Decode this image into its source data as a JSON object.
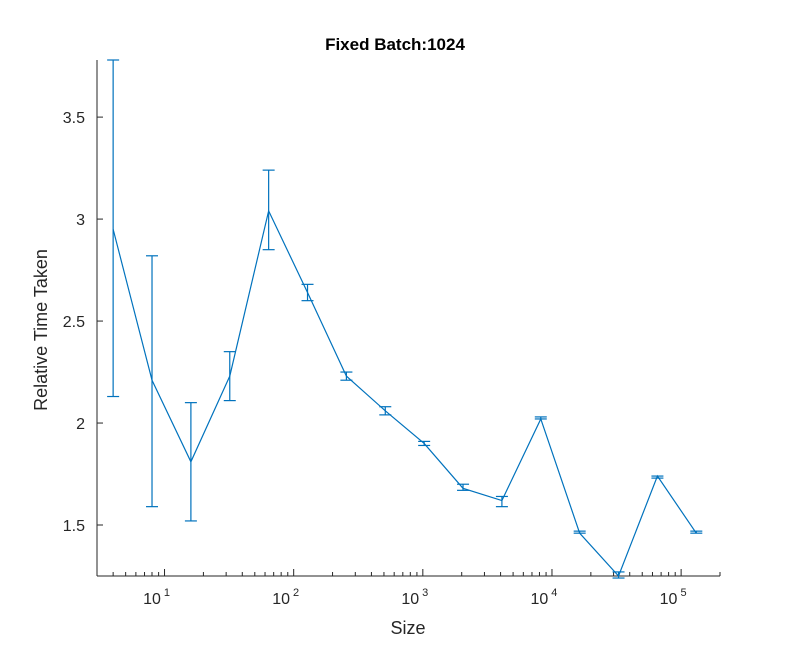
{
  "chart_data": {
    "type": "line",
    "title": "Fixed Batch:1024",
    "xlabel": "Size",
    "ylabel": "Relative Time Taken",
    "xscale": "log",
    "xlim": [
      3,
      200000
    ],
    "ylim": [
      1.25,
      3.78
    ],
    "grid": false,
    "x_ticks": [
      {
        "value": 10,
        "base": "10",
        "exp": "1"
      },
      {
        "value": 100,
        "base": "10",
        "exp": "2"
      },
      {
        "value": 1000,
        "base": "10",
        "exp": "3"
      },
      {
        "value": 10000,
        "base": "10",
        "exp": "4"
      },
      {
        "value": 100000,
        "base": "10",
        "exp": "5"
      }
    ],
    "y_ticks": [
      {
        "value": 1.5,
        "label": "1.5"
      },
      {
        "value": 2,
        "label": "2"
      },
      {
        "value": 2.5,
        "label": "2.5"
      },
      {
        "value": 3,
        "label": "3"
      },
      {
        "value": 3.5,
        "label": "3.5"
      }
    ],
    "series": [
      {
        "color": "#0072bd",
        "x": [
          4,
          8,
          16,
          32,
          64,
          128,
          256,
          512,
          1024,
          2048,
          4096,
          8192,
          16384,
          32768,
          65536,
          131072
        ],
        "y": [
          2.95,
          2.21,
          1.81,
          2.23,
          3.04,
          2.64,
          2.23,
          2.06,
          1.9,
          1.68,
          1.62,
          2.02,
          1.46,
          1.25,
          1.74,
          1.46
        ],
        "err_low": [
          2.13,
          1.59,
          1.52,
          2.11,
          2.85,
          2.6,
          2.21,
          2.04,
          1.89,
          1.67,
          1.59,
          2.02,
          1.46,
          1.24,
          1.73,
          1.46
        ],
        "err_high": [
          3.78,
          2.82,
          2.1,
          2.35,
          3.24,
          2.68,
          2.25,
          2.08,
          1.91,
          1.7,
          1.64,
          2.03,
          1.47,
          1.27,
          1.74,
          1.47
        ]
      }
    ]
  }
}
